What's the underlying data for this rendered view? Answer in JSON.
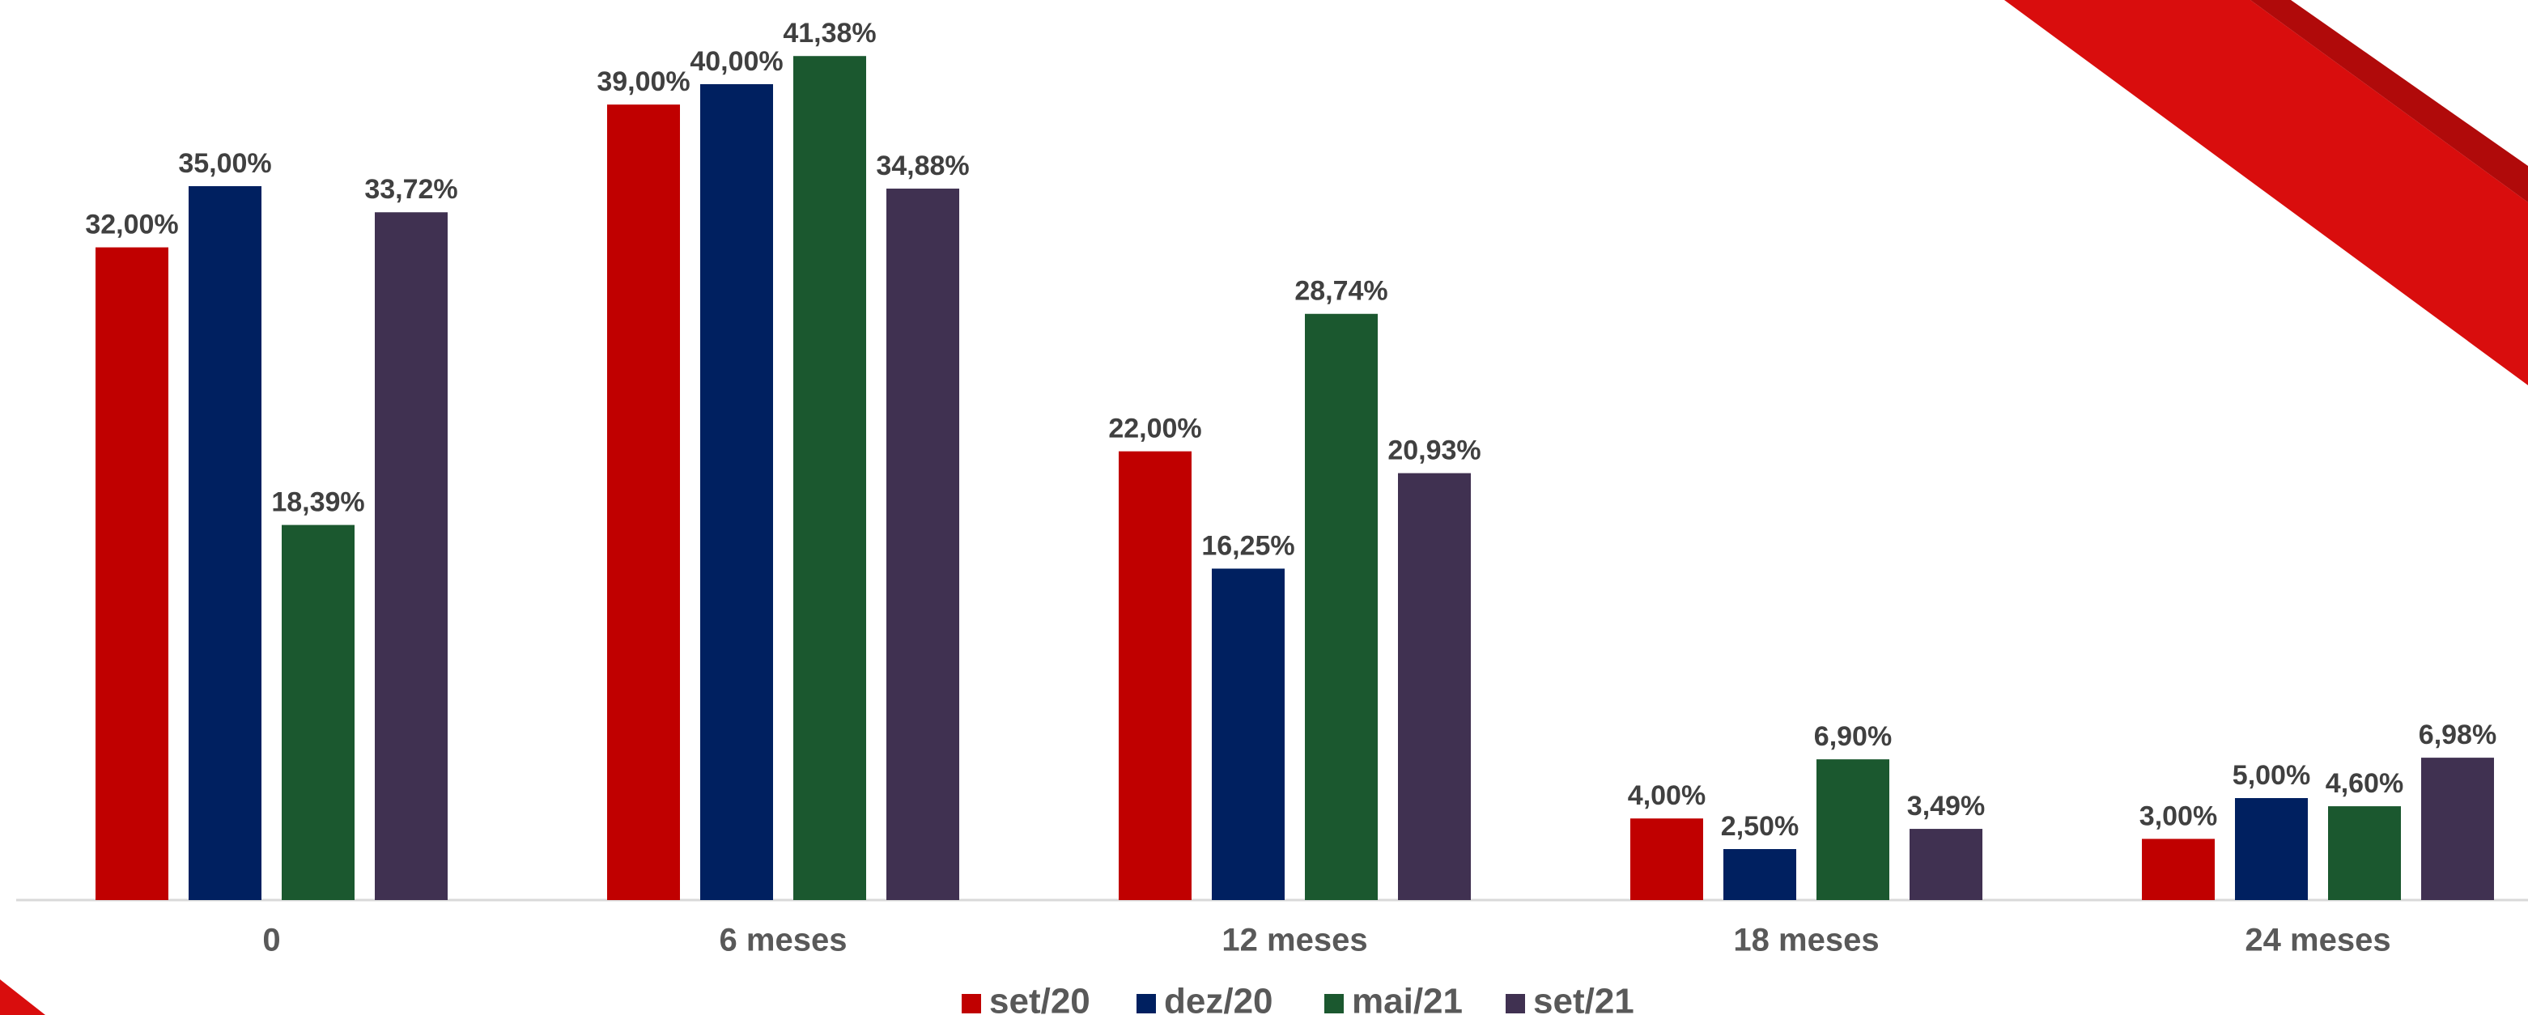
{
  "chart_data": {
    "type": "bar",
    "categories": [
      "0",
      "6 meses",
      "12 meses",
      "18 meses",
      "24 meses"
    ],
    "series": [
      {
        "name": "set/20",
        "color": "#c00000",
        "values": [
          32,
          39,
          22,
          4,
          3
        ],
        "value_labels": [
          "32,00%",
          "39,00%",
          "22,00%",
          "4,00%",
          "3,00%"
        ]
      },
      {
        "name": "dez/20",
        "color": "#002060",
        "values": [
          35,
          40,
          16.25,
          2.5,
          5
        ],
        "value_labels": [
          "35,00%",
          "40,00%",
          "16,25%",
          "2,50%",
          "5,00%"
        ]
      },
      {
        "name": "mai/21",
        "color": "#1b582f",
        "values": [
          18.39,
          41.38,
          28.74,
          6.9,
          4.6
        ],
        "value_labels": [
          "18,39%",
          "41,38%",
          "28,74%",
          "6,90%",
          "4,60%"
        ]
      },
      {
        "name": "set/21",
        "color": "#403151",
        "values": [
          33.72,
          34.88,
          20.93,
          3.49,
          6.98
        ],
        "value_labels": [
          "33,72%",
          "34,88%",
          "20,93%",
          "3,49%",
          "6,98%"
        ]
      }
    ],
    "legend": "bottom"
  }
}
